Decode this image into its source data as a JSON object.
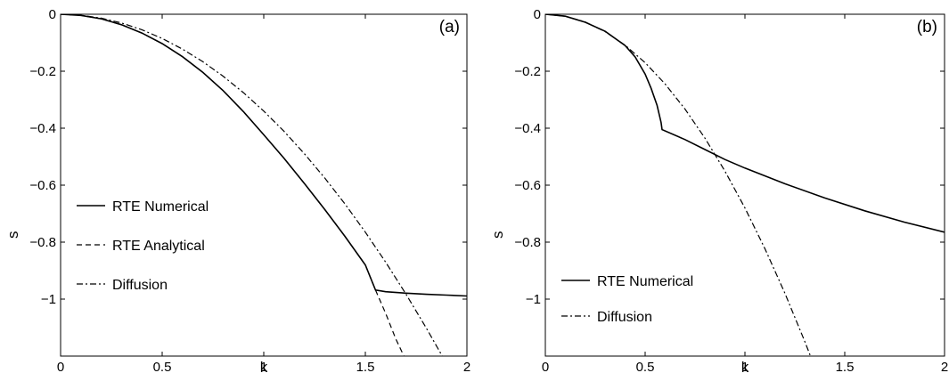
{
  "chart_data": [
    {
      "type": "line",
      "panel_label": "(a)",
      "xlabel": "k",
      "ylabel": "s",
      "xlim": [
        0,
        2
      ],
      "ylim": [
        -1.2,
        0
      ],
      "xticks": [
        0,
        0.5,
        1,
        1.5,
        2
      ],
      "yticks": [
        0,
        -0.2,
        -0.4,
        -0.6,
        -0.8,
        -1
      ],
      "xtick_labels": [
        "0",
        "0.5",
        "1",
        "1.5",
        "2"
      ],
      "ytick_labels": [
        "0",
        "−0.2",
        "−0.4",
        "−0.6",
        "−0.8",
        "−1"
      ],
      "legend_position": "left",
      "series": [
        {
          "name": "RTE Numerical",
          "style": "solid",
          "x": [
            0,
            0.1,
            0.2,
            0.3,
            0.4,
            0.5,
            0.6,
            0.7,
            0.8,
            0.9,
            1.0,
            1.1,
            1.2,
            1.3,
            1.4,
            1.5,
            1.55,
            1.6,
            1.7,
            1.8,
            1.9,
            2.0
          ],
          "y": [
            0,
            -0.004,
            -0.016,
            -0.037,
            -0.066,
            -0.103,
            -0.149,
            -0.204,
            -0.268,
            -0.342,
            -0.423,
            -0.506,
            -0.594,
            -0.685,
            -0.78,
            -0.88,
            -0.968,
            -0.974,
            -0.979,
            -0.983,
            -0.986,
            -0.989
          ]
        },
        {
          "name": "RTE Analytical",
          "style": "dashed",
          "x": [
            0,
            0.1,
            0.2,
            0.3,
            0.4,
            0.5,
            0.6,
            0.7,
            0.8,
            0.9,
            1.0,
            1.1,
            1.2,
            1.3,
            1.4,
            1.5,
            1.55,
            1.6,
            1.65,
            1.69
          ],
          "y": [
            0,
            -0.004,
            -0.016,
            -0.037,
            -0.066,
            -0.103,
            -0.149,
            -0.204,
            -0.268,
            -0.342,
            -0.423,
            -0.506,
            -0.594,
            -0.685,
            -0.78,
            -0.88,
            -0.968,
            -1.05,
            -1.14,
            -1.2
          ]
        },
        {
          "name": "Diffusion",
          "style": "dashdot",
          "x": [
            0,
            0.1,
            0.2,
            0.3,
            0.4,
            0.5,
            0.6,
            0.7,
            0.8,
            0.9,
            1.0,
            1.1,
            1.2,
            1.3,
            1.4,
            1.5,
            1.6,
            1.7,
            1.8,
            1.88
          ],
          "y": [
            0,
            -0.0034,
            -0.0136,
            -0.0306,
            -0.0544,
            -0.085,
            -0.1224,
            -0.1666,
            -0.2176,
            -0.2754,
            -0.34,
            -0.4114,
            -0.4896,
            -0.5746,
            -0.6664,
            -0.765,
            -0.8704,
            -0.9826,
            -1.1016,
            -1.2017
          ]
        }
      ]
    },
    {
      "type": "line",
      "panel_label": "(b)",
      "xlabel": "k",
      "ylabel": "s",
      "xlim": [
        0,
        2
      ],
      "ylim": [
        -1.2,
        0
      ],
      "xticks": [
        0,
        0.5,
        1,
        1.5,
        2
      ],
      "yticks": [
        0,
        -0.2,
        -0.4,
        -0.6,
        -0.8,
        -1
      ],
      "xtick_labels": [
        "0",
        "0.5",
        "1",
        "1.5",
        "2"
      ],
      "ytick_labels": [
        "0",
        "−0.2",
        "−0.4",
        "−0.6",
        "−0.8",
        "−1"
      ],
      "legend_position": "bottom-left",
      "series": [
        {
          "name": "RTE Numerical",
          "style": "solid",
          "x": [
            0,
            0.1,
            0.2,
            0.3,
            0.4,
            0.45,
            0.5,
            0.53,
            0.56,
            0.58,
            0.585,
            0.7,
            0.8,
            0.9,
            1.0,
            1.2,
            1.4,
            1.6,
            1.8,
            2.0
          ],
          "y": [
            0,
            -0.007,
            -0.028,
            -0.06,
            -0.11,
            -0.15,
            -0.21,
            -0.26,
            -0.32,
            -0.38,
            -0.405,
            -0.44,
            -0.475,
            -0.51,
            -0.54,
            -0.595,
            -0.645,
            -0.69,
            -0.73,
            -0.765
          ]
        },
        {
          "name": "Diffusion",
          "style": "dashdot",
          "x": [
            0,
            0.1,
            0.2,
            0.3,
            0.4,
            0.5,
            0.6,
            0.7,
            0.8,
            0.9,
            1.0,
            1.1,
            1.2,
            1.3,
            1.34
          ],
          "y": [
            0,
            -0.0068,
            -0.0272,
            -0.0612,
            -0.1088,
            -0.17,
            -0.2448,
            -0.3332,
            -0.4352,
            -0.5508,
            -0.68,
            -0.8228,
            -0.9792,
            -1.1492,
            -1.2211
          ]
        }
      ]
    }
  ]
}
